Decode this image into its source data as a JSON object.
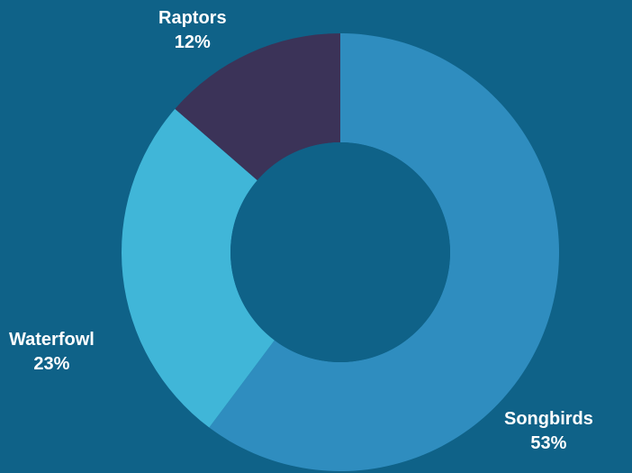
{
  "background_color": "#0f6288",
  "chart_data": {
    "type": "pie",
    "style": "donut",
    "title": "",
    "slices": [
      {
        "label": "Songbirds",
        "value": 53,
        "value_label": "53%",
        "color": "#2f8dbf"
      },
      {
        "label": "Waterfowl",
        "value": 23,
        "value_label": "23%",
        "color": "#40b6d8"
      },
      {
        "label": "Raptors",
        "value": 12,
        "value_label": "12%",
        "color": "#3b3358"
      }
    ],
    "start": "top",
    "direction": "clockwise",
    "legend": "none"
  }
}
